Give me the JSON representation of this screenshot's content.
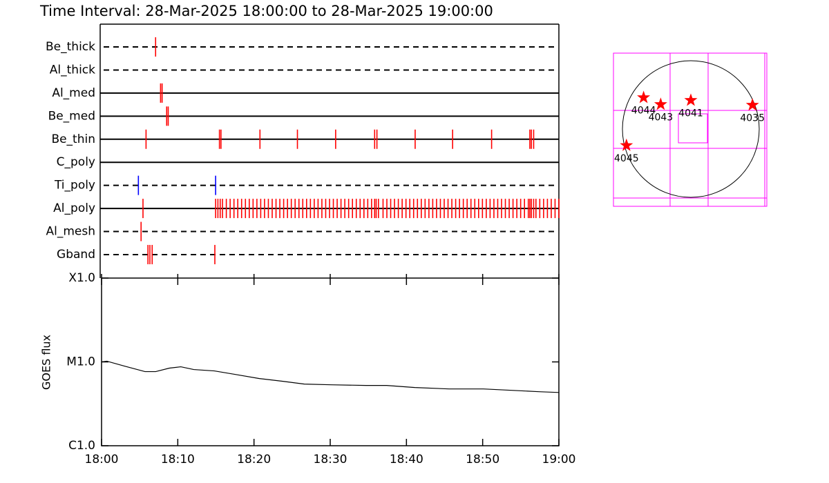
{
  "chart_data": [
    {
      "type": "timeline",
      "title": "Time Interval: 28-Mar-2025 18:00:00 to 28-Mar-2025 19:00:00",
      "xlim": [
        0,
        60
      ],
      "series": [
        {
          "name": "Be_thick",
          "line": "dashed",
          "color": "#ff0000",
          "events": [
            7.25
          ]
        },
        {
          "name": "Al_thick",
          "line": "dashed",
          "color": "#ff0000",
          "events": []
        },
        {
          "name": "Al_med",
          "line": "solid",
          "color": "#ff0000",
          "events": [
            7.9,
            8.1
          ]
        },
        {
          "name": "Be_med",
          "line": "solid",
          "color": "#ff0000",
          "events": [
            8.7,
            8.9
          ]
        },
        {
          "name": "Be_thin",
          "line": "solid",
          "color": "#ff0000",
          "events": [
            6.0,
            15.6,
            15.8,
            20.9,
            25.8,
            30.8,
            35.9,
            36.2,
            41.2,
            46.1,
            51.2,
            56.2,
            56.4,
            56.7
          ]
        },
        {
          "name": "C_poly",
          "line": "solid",
          "color": "#ff0000",
          "events": []
        },
        {
          "name": "Ti_poly",
          "line": "dashed",
          "color": "#0000ff",
          "events": [
            5.0,
            15.1
          ]
        },
        {
          "name": "Al_poly",
          "line": "solid",
          "color": "#ff0000",
          "events": [
            5.6,
            15.1,
            15.4,
            15.7,
            16.0,
            16.5,
            17.0,
            17.5,
            18.0,
            18.5,
            19.0,
            19.5,
            20.0,
            20.5,
            21.0,
            21.5,
            22.0,
            22.5,
            23.0,
            23.5,
            24.0,
            24.5,
            25.0,
            25.5,
            26.0,
            26.5,
            27.0,
            27.5,
            28.0,
            28.5,
            29.0,
            29.5,
            30.0,
            30.5,
            31.0,
            31.5,
            32.0,
            32.5,
            33.0,
            33.5,
            34.0,
            34.5,
            35.0,
            35.5,
            35.9,
            36.1,
            36.4,
            37.0,
            37.5,
            38.0,
            38.5,
            39.0,
            39.5,
            40.0,
            40.5,
            41.0,
            41.5,
            42.0,
            42.5,
            43.0,
            43.5,
            44.0,
            44.5,
            45.0,
            45.5,
            46.0,
            46.5,
            47.0,
            47.5,
            48.0,
            48.5,
            49.0,
            49.5,
            50.0,
            50.5,
            51.0,
            51.5,
            52.0,
            52.5,
            53.0,
            53.5,
            54.0,
            54.5,
            55.0,
            55.5,
            56.0,
            56.2,
            56.4,
            56.7,
            57.0,
            57.5,
            58.0,
            58.5,
            59.0,
            59.5,
            60.0
          ]
        },
        {
          "name": "Al_mesh",
          "line": "dashed",
          "color": "#ff0000",
          "events": [
            5.35
          ]
        },
        {
          "name": "Gband",
          "line": "dashed",
          "color": "#ff0000",
          "events": [
            6.25,
            6.5,
            6.8,
            15.0
          ]
        }
      ]
    },
    {
      "type": "line",
      "ylabel": "GOES flux",
      "color": "#000000",
      "log_y": true,
      "xlim": [
        0,
        60
      ],
      "xticks": [
        {
          "value": 0,
          "label": "18:00"
        },
        {
          "value": 10,
          "label": "18:10"
        },
        {
          "value": 20,
          "label": "18:20"
        },
        {
          "value": 30,
          "label": "18:30"
        },
        {
          "value": 40,
          "label": "18:40"
        },
        {
          "value": 50,
          "label": "18:50"
        },
        {
          "value": 60,
          "label": "19:00"
        }
      ],
      "ylim": [
        1e-06,
        0.0001
      ],
      "yticks": [
        {
          "value": 1e-06,
          "label": "C1.0"
        },
        {
          "value": 1e-05,
          "label": "M1.0"
        },
        {
          "value": 0.0001,
          "label": "X1.0"
        }
      ],
      "x": [
        0,
        0.7,
        3.0,
        5.7,
        7.1,
        8.9,
        10.4,
        12.1,
        14.8,
        17.5,
        20.7,
        23.8,
        26.6,
        30.2,
        34.7,
        37.4,
        41.1,
        45.6,
        50.1,
        53.8,
        57.4,
        60
      ],
      "values": [
        1e-05,
        1.02e-05,
        8.92e-06,
        7.66e-06,
        7.66e-06,
        8.43e-06,
        8.75e-06,
        8.11e-06,
        7.81e-06,
        7.1e-06,
        6.33e-06,
        5.87e-06,
        5.44e-06,
        5.33e-06,
        5.24e-06,
        5.24e-06,
        4.95e-06,
        4.76e-06,
        4.76e-06,
        4.58e-06,
        4.41e-06,
        4.32e-06
      ]
    },
    {
      "type": "scatter",
      "marker": "star",
      "color": "#ff0000",
      "xlim": [
        -1.13,
        1.11
      ],
      "ylim": [
        -1.13,
        1.11
      ],
      "x": [
        -0.69,
        -0.44,
        0.0,
        0.9,
        -0.94
      ],
      "y": [
        0.46,
        0.36,
        0.42,
        0.35,
        -0.24
      ],
      "labels": [
        "4044",
        "4043",
        "4041",
        "4035",
        "4045"
      ]
    }
  ]
}
